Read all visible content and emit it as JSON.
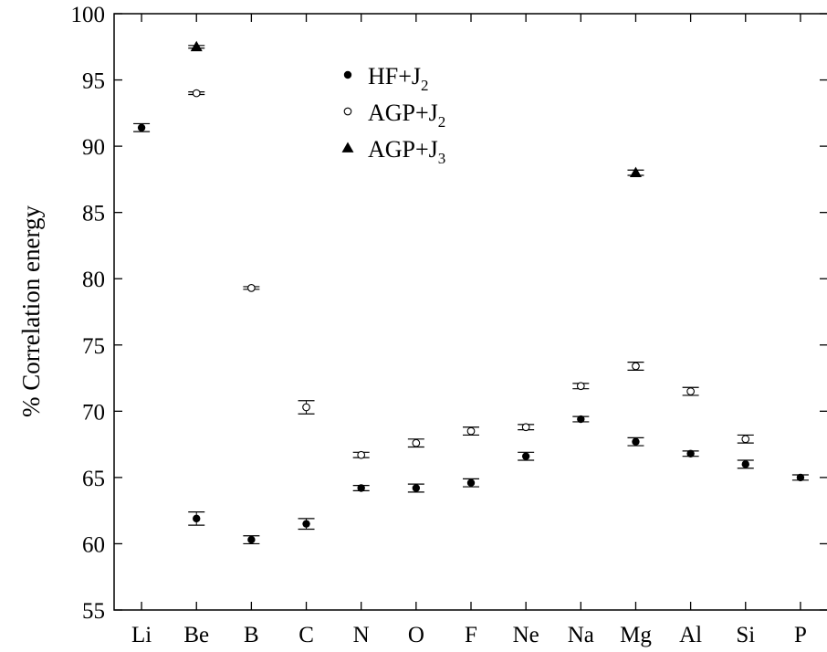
{
  "chart_data": {
    "type": "scatter",
    "ylabel": "% Correlation energy",
    "xlabel": "",
    "categories": [
      "Li",
      "Be",
      "B",
      "C",
      "N",
      "O",
      "F",
      "Ne",
      "Na",
      "Mg",
      "Al",
      "Si",
      "P"
    ],
    "ylim": [
      55,
      100
    ],
    "yticks": [
      55,
      60,
      65,
      70,
      75,
      80,
      85,
      90,
      95,
      100
    ],
    "grid": false,
    "legend_position": "top-center",
    "series": [
      {
        "name": "HF+J2",
        "legend_main": "HF+J",
        "legend_sub": "2",
        "marker": "filled-circle",
        "values": [
          91.4,
          61.9,
          60.3,
          61.5,
          64.2,
          64.2,
          64.6,
          66.6,
          69.4,
          67.7,
          66.8,
          66.0,
          65.0
        ],
        "errors": [
          0.3,
          0.5,
          0.3,
          0.4,
          0.2,
          0.3,
          0.3,
          0.3,
          0.2,
          0.3,
          0.2,
          0.3,
          0.2
        ]
      },
      {
        "name": "AGP+J2",
        "legend_main": "AGP+J",
        "legend_sub": "2",
        "marker": "open-circle",
        "values": [
          null,
          94.0,
          79.3,
          70.3,
          66.7,
          67.6,
          68.5,
          68.8,
          71.9,
          73.4,
          71.5,
          67.9,
          null
        ],
        "errors": [
          0,
          0.1,
          0.1,
          0.5,
          0.2,
          0.3,
          0.3,
          0.2,
          0.2,
          0.3,
          0.3,
          0.3,
          0
        ]
      },
      {
        "name": "AGP+J3",
        "legend_main": "AGP+J",
        "legend_sub": "3",
        "marker": "filled-triangle",
        "values": [
          null,
          97.5,
          null,
          null,
          null,
          null,
          null,
          null,
          null,
          88.0,
          null,
          null,
          null
        ],
        "errors": [
          0,
          0.1,
          0,
          0,
          0,
          0,
          0,
          0,
          0,
          0.2,
          0,
          0,
          0
        ]
      }
    ]
  }
}
